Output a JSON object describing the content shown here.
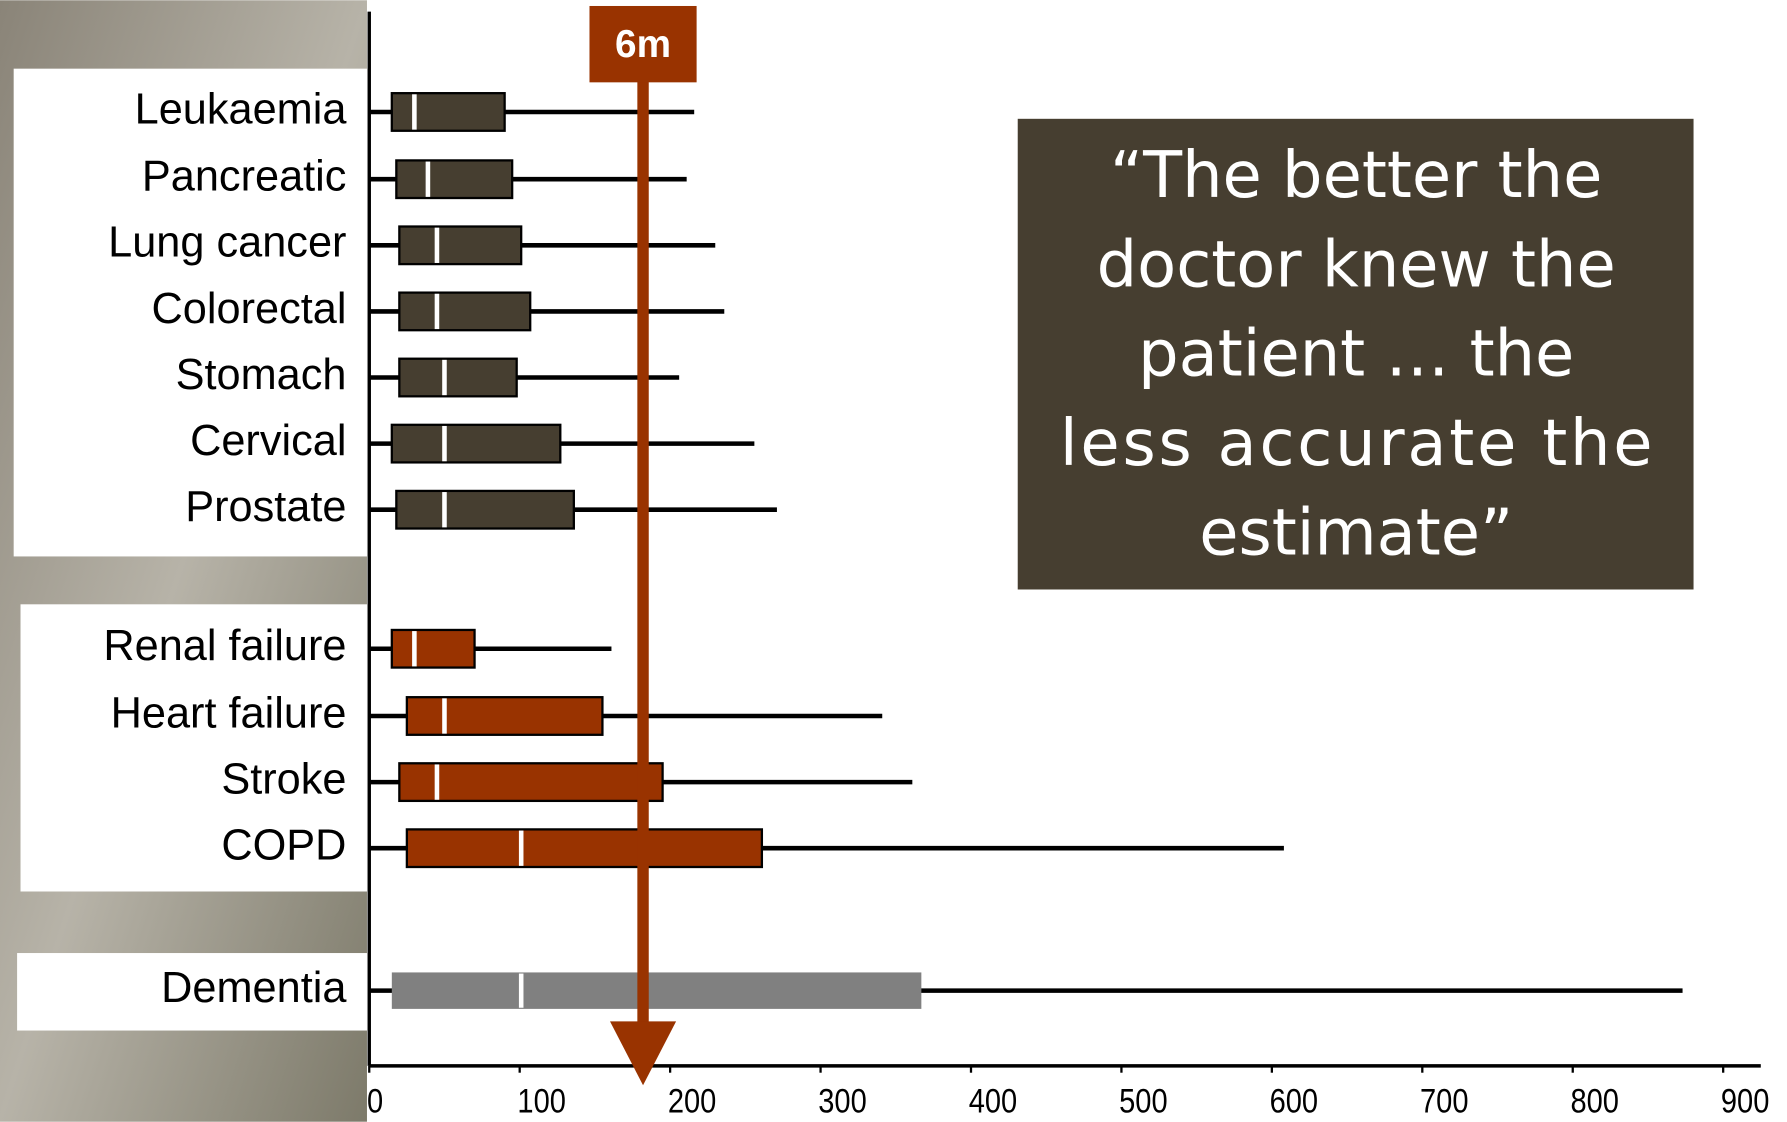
{
  "chart_data": {
    "type": "boxplot",
    "categories": [
      "Leukaemia",
      "Pancreatic",
      "Lung cancer",
      "Colorectal",
      "Stomach",
      "Cervical",
      "Prostate",
      "Renal failure",
      "Heart failure",
      "Stroke",
      "COPD",
      "Dementia"
    ],
    "min": [
      0,
      0,
      0,
      0,
      0,
      0,
      0,
      0,
      0,
      0,
      0,
      0
    ],
    "q1": [
      15,
      18,
      20,
      20,
      20,
      15,
      18,
      15,
      25,
      20,
      25,
      15
    ],
    "median": [
      30,
      39,
      45,
      45,
      50,
      50,
      50,
      30,
      50,
      45,
      101,
      101
    ],
    "q3": [
      90,
      95,
      101,
      107,
      98,
      127,
      136,
      70,
      155,
      195,
      261,
      367
    ],
    "max": [
      216,
      211,
      230,
      236,
      206,
      256,
      271,
      161,
      341,
      361,
      608,
      873
    ],
    "box_colors": [
      "#463e30",
      "#463e30",
      "#463e30",
      "#463e30",
      "#463e30",
      "#463e30",
      "#463e30",
      "#993300",
      "#993300",
      "#993300",
      "#993300",
      "#808080"
    ],
    "median_color": "#ffffff",
    "xlim": [
      0,
      900
    ],
    "xticks": [
      0,
      100,
      200,
      300,
      400,
      500,
      600,
      700,
      800,
      900
    ],
    "reference_line": {
      "value": 182,
      "label": "6m",
      "color": "#993300"
    },
    "annotation": [
      "“The better the",
      "doctor knew the",
      "patient …  the",
      "less accurate the",
      "estimate”"
    ]
  }
}
